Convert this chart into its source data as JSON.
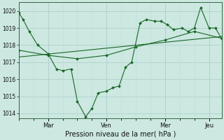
{
  "xlabel": "Pression niveau de la mer( hPa )",
  "ylim": [
    1013.7,
    1020.5
  ],
  "yticks": [
    1014,
    1015,
    1016,
    1017,
    1018,
    1019,
    1020
  ],
  "bg_color": "#cce8e0",
  "grid_major_color": "#aacccc",
  "grid_minor_color": "#bbdddd",
  "line_color": "#1a6628",
  "marker_color": "#1a6628",
  "x_tick_positions": [
    14,
    42,
    70,
    91
  ],
  "x_tick_labels": [
    "Mar",
    "Ven",
    "Mer",
    "Jeu"
  ],
  "xlim": [
    0,
    97
  ],
  "series1_x": [
    0,
    2,
    5,
    9,
    14,
    18,
    21,
    25,
    28,
    32,
    35,
    38,
    42,
    45,
    48,
    51,
    54,
    58,
    61,
    65,
    68,
    71,
    74,
    78,
    81,
    84,
    87,
    91,
    94,
    97
  ],
  "series1_y": [
    1019.9,
    1019.5,
    1018.8,
    1018.0,
    1017.5,
    1016.6,
    1016.5,
    1016.6,
    1014.7,
    1013.8,
    1014.3,
    1015.2,
    1015.3,
    1015.5,
    1015.6,
    1016.7,
    1017.0,
    1019.3,
    1019.5,
    1019.4,
    1019.4,
    1019.2,
    1018.9,
    1019.0,
    1018.8,
    1019.0,
    1020.2,
    1019.0,
    1019.0,
    1018.4
  ],
  "series2_x": [
    0,
    14,
    28,
    42,
    56,
    70,
    84,
    97
  ],
  "series2_y": [
    1017.7,
    1017.4,
    1017.2,
    1017.4,
    1017.9,
    1018.3,
    1018.8,
    1018.4
  ],
  "series3_x": [
    0,
    97
  ],
  "series3_y": [
    1017.3,
    1018.5
  ]
}
